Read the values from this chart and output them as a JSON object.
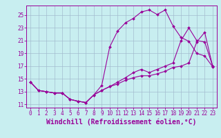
{
  "xlabel": "Windchill (Refroidissement éolien,°C)",
  "bg_color": "#c8eef0",
  "line_color": "#990099",
  "xlim": [
    -0.5,
    23.5
  ],
  "ylim": [
    10.5,
    26.5
  ],
  "xticks": [
    0,
    1,
    2,
    3,
    4,
    5,
    6,
    7,
    8,
    9,
    10,
    11,
    12,
    13,
    14,
    15,
    16,
    17,
    18,
    19,
    20,
    21,
    22,
    23
  ],
  "yticks": [
    11,
    13,
    15,
    17,
    19,
    21,
    23,
    25
  ],
  "line1_x": [
    0,
    1,
    2,
    3,
    4,
    5,
    6,
    7,
    8,
    9,
    10,
    11,
    12,
    13,
    14,
    15,
    16,
    17,
    18,
    19,
    20,
    21,
    22,
    23
  ],
  "line1_y": [
    14.5,
    13.2,
    13.0,
    12.8,
    12.8,
    11.8,
    11.5,
    11.3,
    12.5,
    14.0,
    20.0,
    22.5,
    23.8,
    24.5,
    25.5,
    25.8,
    25.1,
    25.8,
    23.3,
    21.5,
    20.9,
    19.0,
    18.6,
    16.9
  ],
  "line2_x": [
    0,
    1,
    2,
    3,
    4,
    5,
    6,
    7,
    8,
    9,
    10,
    11,
    12,
    13,
    14,
    15,
    16,
    17,
    18,
    19,
    20,
    21,
    22,
    23
  ],
  "line2_y": [
    14.5,
    13.2,
    13.0,
    12.8,
    12.8,
    11.8,
    11.5,
    11.3,
    12.5,
    13.2,
    13.8,
    14.2,
    14.8,
    15.2,
    15.5,
    15.5,
    15.8,
    16.2,
    16.8,
    17.0,
    17.5,
    20.8,
    22.3,
    17.0
  ],
  "line3_x": [
    0,
    1,
    2,
    3,
    4,
    5,
    6,
    7,
    8,
    9,
    10,
    11,
    12,
    13,
    14,
    15,
    16,
    17,
    18,
    19,
    20,
    21,
    22,
    23
  ],
  "line3_y": [
    14.5,
    13.2,
    13.0,
    12.8,
    12.8,
    11.8,
    11.5,
    11.3,
    12.5,
    13.2,
    13.8,
    14.5,
    15.2,
    16.0,
    16.5,
    16.0,
    16.5,
    17.0,
    17.5,
    21.0,
    23.0,
    21.0,
    20.8,
    17.0
  ],
  "grid_color": "#a0b8cc",
  "tick_fontsize": 5.5,
  "xlabel_fontsize": 7.0,
  "marker_size": 2.0,
  "line_width": 0.8
}
